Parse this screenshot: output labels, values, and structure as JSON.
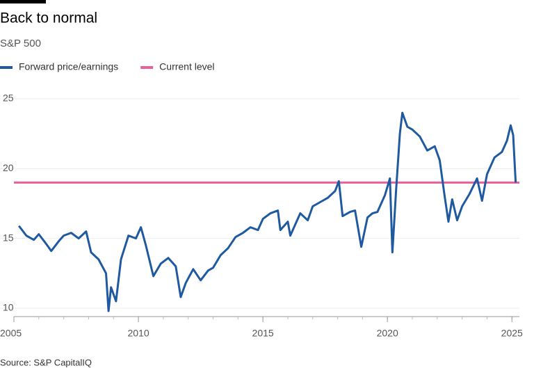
{
  "chart_data": {
    "type": "line",
    "title": "Back to normal",
    "subtitle": "S&P 500",
    "source": "Source: S&P CapitalIQ",
    "xlim": [
      2005,
      2025.3
    ],
    "xticks": [
      2005,
      2010,
      2015,
      2020,
      2025
    ],
    "ylim": [
      9.4,
      25.7
    ],
    "yticks": [
      10,
      15,
      20,
      25
    ],
    "grid": true,
    "x": [
      2005.2,
      2005.5,
      2005.8,
      2006.0,
      2006.3,
      2006.5,
      2006.8,
      2007.0,
      2007.3,
      2007.6,
      2007.9,
      2008.1,
      2008.4,
      2008.7,
      2008.8,
      2008.9,
      2009.1,
      2009.3,
      2009.6,
      2009.9,
      2010.1,
      2010.3,
      2010.6,
      2010.9,
      2011.2,
      2011.5,
      2011.7,
      2011.9,
      2012.2,
      2012.5,
      2012.8,
      2013.0,
      2013.3,
      2013.6,
      2013.9,
      2014.2,
      2014.5,
      2014.8,
      2015.0,
      2015.3,
      2015.6,
      2015.7,
      2016.0,
      2016.1,
      2016.5,
      2016.8,
      2017.0,
      2017.3,
      2017.6,
      2017.9,
      2018.05,
      2018.2,
      2018.5,
      2018.7,
      2018.95,
      2019.2,
      2019.4,
      2019.6,
      2019.9,
      2020.1,
      2020.2,
      2020.35,
      2020.5,
      2020.6,
      2020.8,
      2021.0,
      2021.3,
      2021.6,
      2021.9,
      2022.1,
      2022.3,
      2022.45,
      2022.6,
      2022.8,
      2023.0,
      2023.3,
      2023.6,
      2023.8,
      2024.0,
      2024.3,
      2024.6,
      2024.8,
      2024.95,
      2025.05,
      2025.15
    ],
    "series": [
      {
        "name": "Forward price/earnings",
        "color": "#1f5aa0",
        "values": [
          15.9,
          15.2,
          14.9,
          15.3,
          14.6,
          14.1,
          14.8,
          15.2,
          15.4,
          15.0,
          15.5,
          14.0,
          13.5,
          12.5,
          9.8,
          11.5,
          10.5,
          13.5,
          15.2,
          15.0,
          15.8,
          14.5,
          12.3,
          13.2,
          13.6,
          13.0,
          10.8,
          11.8,
          12.8,
          12.0,
          12.7,
          12.9,
          13.8,
          14.3,
          15.1,
          15.4,
          15.8,
          15.6,
          16.4,
          16.8,
          17.0,
          15.6,
          16.2,
          15.2,
          16.8,
          16.3,
          17.3,
          17.6,
          17.9,
          18.4,
          19.1,
          16.6,
          16.9,
          17.0,
          14.4,
          16.5,
          16.8,
          16.9,
          18.1,
          19.3,
          14.0,
          18.5,
          22.5,
          24.0,
          23.0,
          22.8,
          22.3,
          21.3,
          21.6,
          20.6,
          18.0,
          16.2,
          17.8,
          16.3,
          17.3,
          18.2,
          19.3,
          17.7,
          19.6,
          20.8,
          21.2,
          22.0,
          23.1,
          22.4,
          19.0
        ]
      },
      {
        "name": "Current level",
        "color": "#e8619a",
        "value": 19
      }
    ]
  }
}
